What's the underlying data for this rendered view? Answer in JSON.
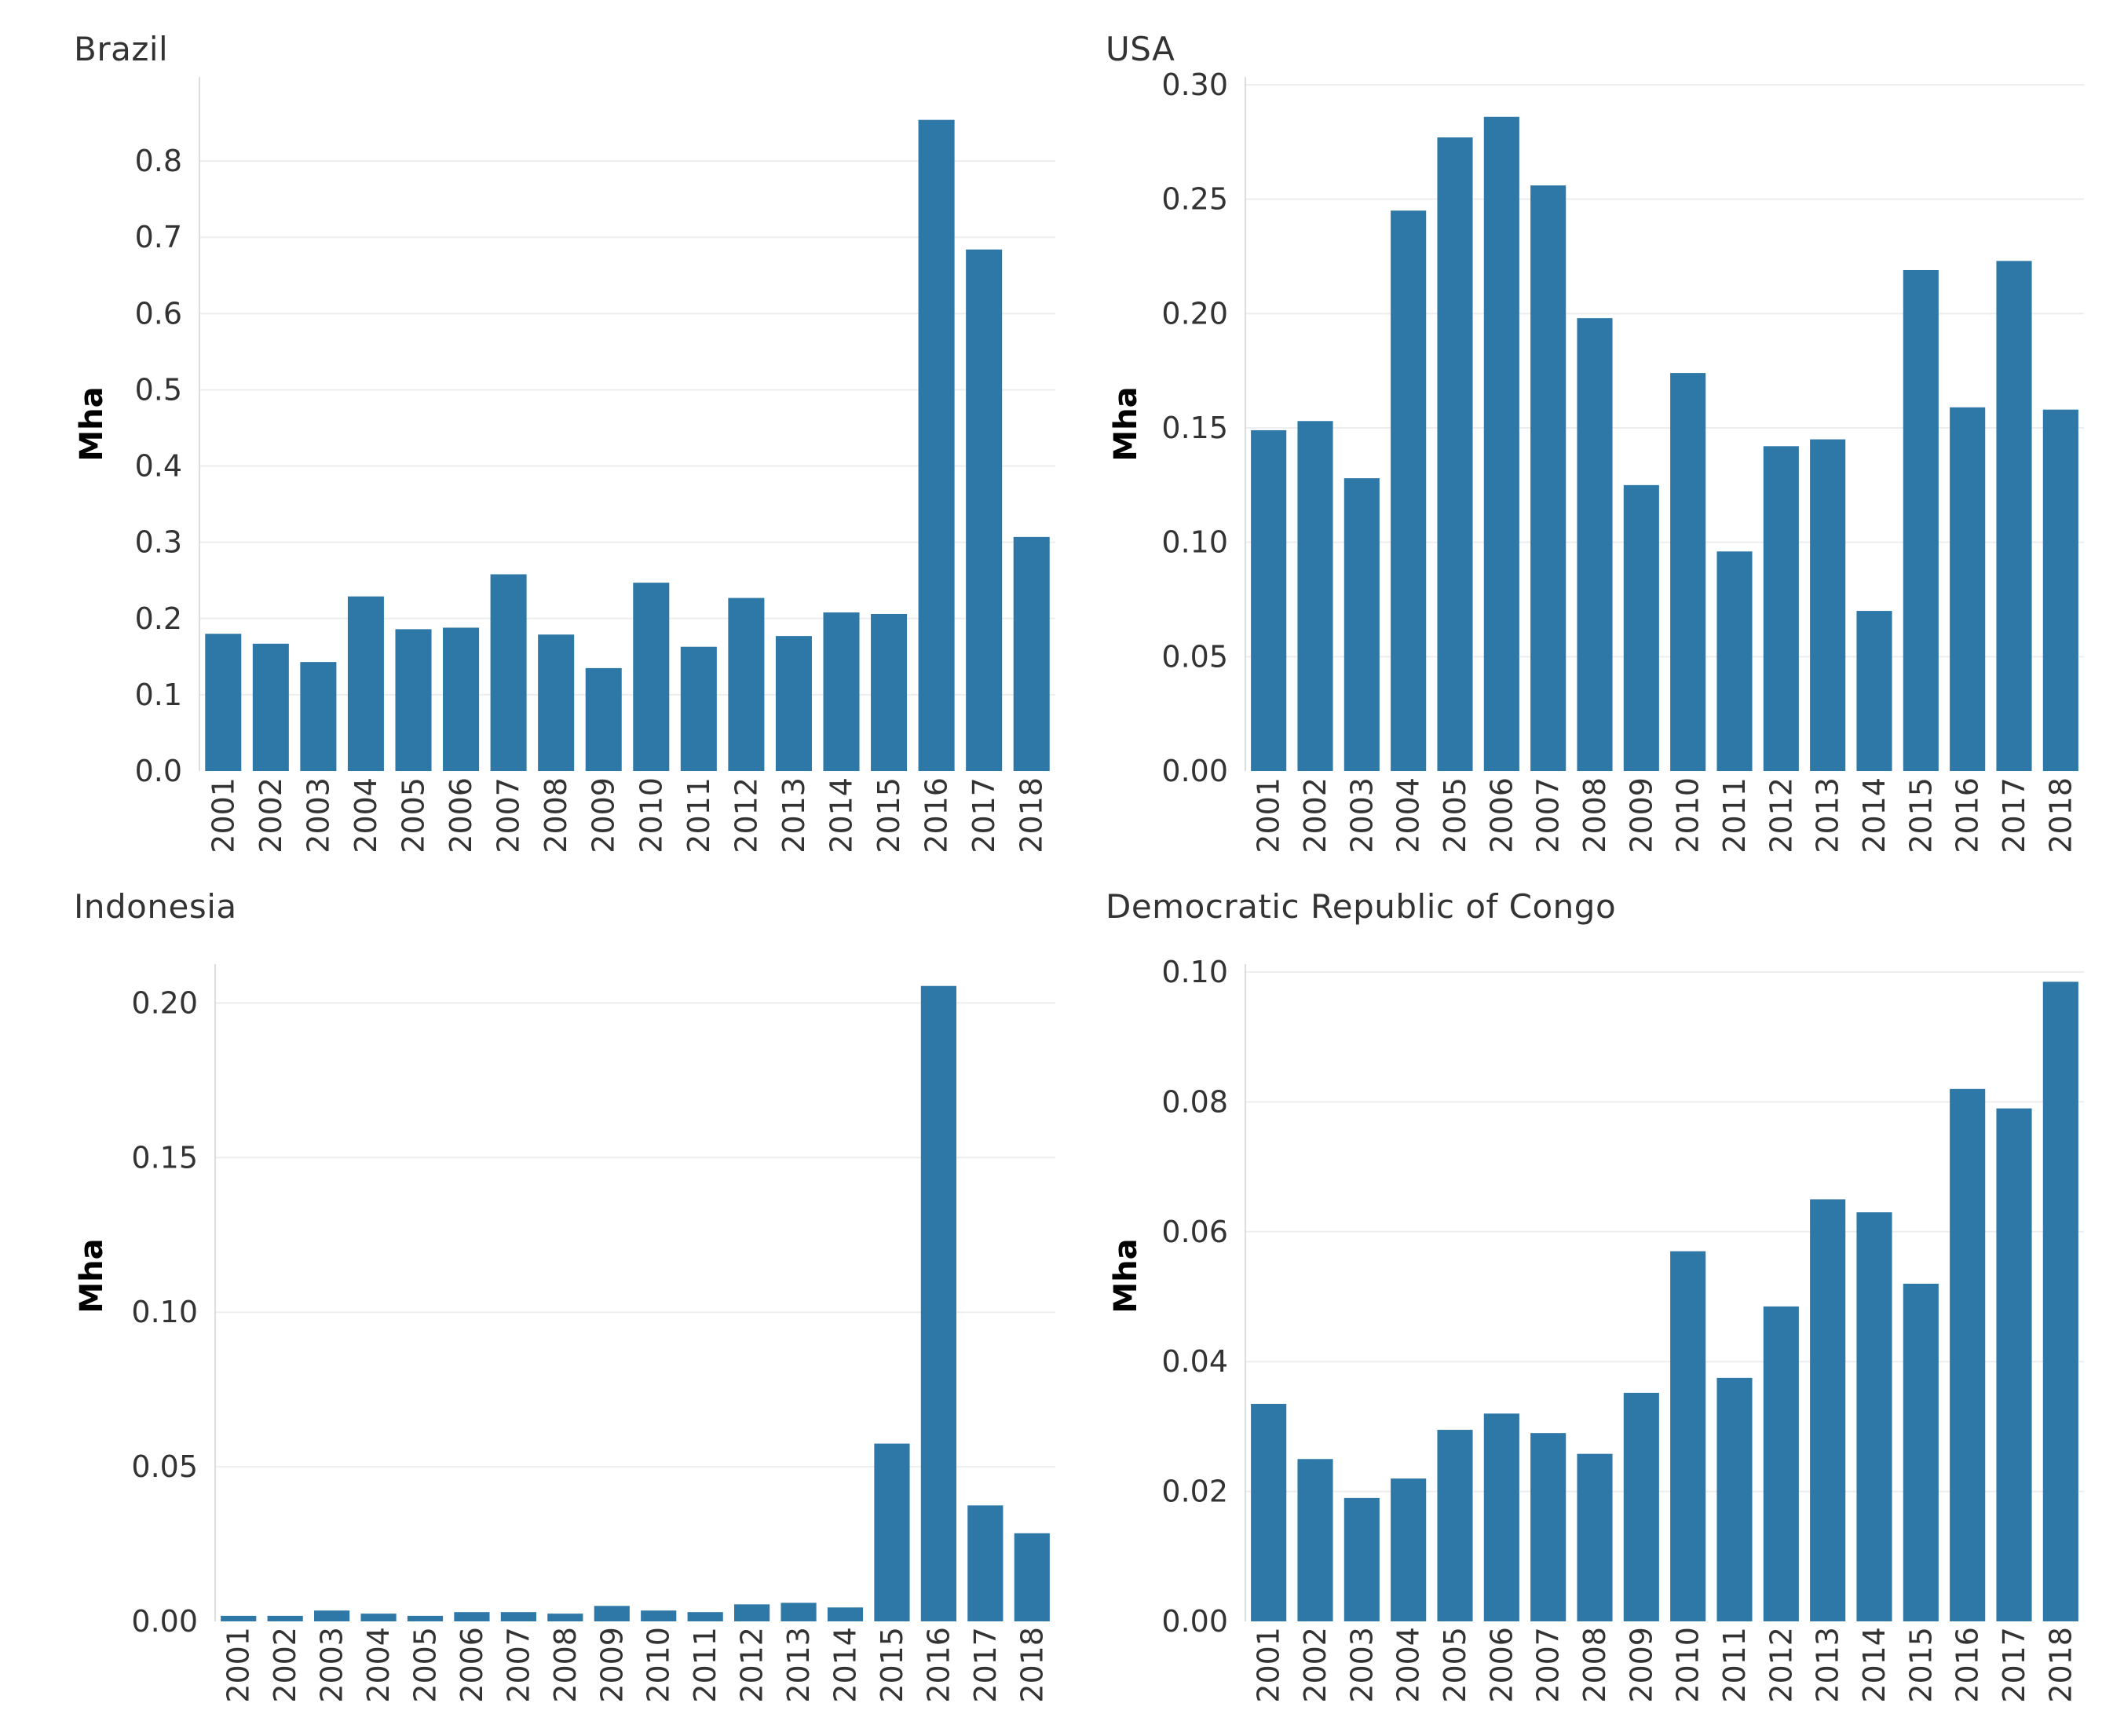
{
  "chart_data": [
    {
      "type": "bar",
      "title": "Brazil",
      "ylabel": "Mha",
      "xlabel": "",
      "ylim": [
        0,
        0.9
      ],
      "yticks": [
        "0.0",
        "0.1",
        "0.2",
        "0.3",
        "0.4",
        "0.5",
        "0.6",
        "0.7",
        "0.8"
      ],
      "categories": [
        "2001",
        "2002",
        "2003",
        "2004",
        "2005",
        "2006",
        "2007",
        "2008",
        "2009",
        "2010",
        "2011",
        "2012",
        "2013",
        "2014",
        "2015",
        "2016",
        "2017",
        "2018"
      ],
      "values": [
        0.18,
        0.167,
        0.143,
        0.229,
        0.186,
        0.188,
        0.258,
        0.179,
        0.135,
        0.247,
        0.163,
        0.227,
        0.177,
        0.208,
        0.206,
        0.854,
        0.684,
        0.307
      ],
      "color": "#2e78a8"
    },
    {
      "type": "bar",
      "title": "USA",
      "ylabel": "Mha",
      "xlabel": "",
      "ylim": [
        0,
        0.3
      ],
      "yticks": [
        "0.00",
        "0.05",
        "0.10",
        "0.15",
        "0.20",
        "0.25",
        "0.30"
      ],
      "categories": [
        "2001",
        "2002",
        "2003",
        "2004",
        "2005",
        "2006",
        "2007",
        "2008",
        "2009",
        "2010",
        "2011",
        "2012",
        "2013",
        "2014",
        "2015",
        "2016",
        "2017",
        "2018"
      ],
      "values": [
        0.149,
        0.153,
        0.128,
        0.245,
        0.277,
        0.286,
        0.256,
        0.198,
        0.125,
        0.174,
        0.096,
        0.142,
        0.145,
        0.07,
        0.219,
        0.159,
        0.223,
        0.158
      ],
      "color": "#2e78a8"
    },
    {
      "type": "bar",
      "title": "Indonesia",
      "ylabel": "Mha",
      "xlabel": "",
      "ylim": [
        0,
        0.21
      ],
      "yticks": [
        "0.00",
        "0.05",
        "0.10",
        "0.15",
        "0.20"
      ],
      "categories": [
        "2001",
        "2002",
        "2003",
        "2004",
        "2005",
        "2006",
        "2007",
        "2008",
        "2009",
        "2010",
        "2011",
        "2012",
        "2013",
        "2014",
        "2015",
        "2016",
        "2017",
        "2018"
      ],
      "values": [
        0.0018,
        0.0018,
        0.0035,
        0.0025,
        0.0018,
        0.003,
        0.003,
        0.0025,
        0.005,
        0.0035,
        0.003,
        0.0055,
        0.006,
        0.0045,
        0.0575,
        0.2055,
        0.0375,
        0.0285
      ],
      "color": "#2e78a8"
    },
    {
      "type": "bar",
      "title": "Democratic Republic of Congo",
      "ylabel": "Mha",
      "xlabel": "",
      "ylim": [
        0,
        0.1
      ],
      "yticks": [
        "0.00",
        "0.02",
        "0.04",
        "0.06",
        "0.08",
        "0.10"
      ],
      "categories": [
        "2001",
        "2002",
        "2003",
        "2004",
        "2005",
        "2006",
        "2007",
        "2008",
        "2009",
        "2010",
        "2011",
        "2012",
        "2013",
        "2014",
        "2015",
        "2016",
        "2017",
        "2018"
      ],
      "values": [
        0.0335,
        0.025,
        0.019,
        0.022,
        0.0295,
        0.032,
        0.029,
        0.0258,
        0.0352,
        0.057,
        0.0375,
        0.0485,
        0.065,
        0.063,
        0.052,
        0.082,
        0.079,
        0.0985
      ],
      "color": "#2e78a8"
    }
  ]
}
